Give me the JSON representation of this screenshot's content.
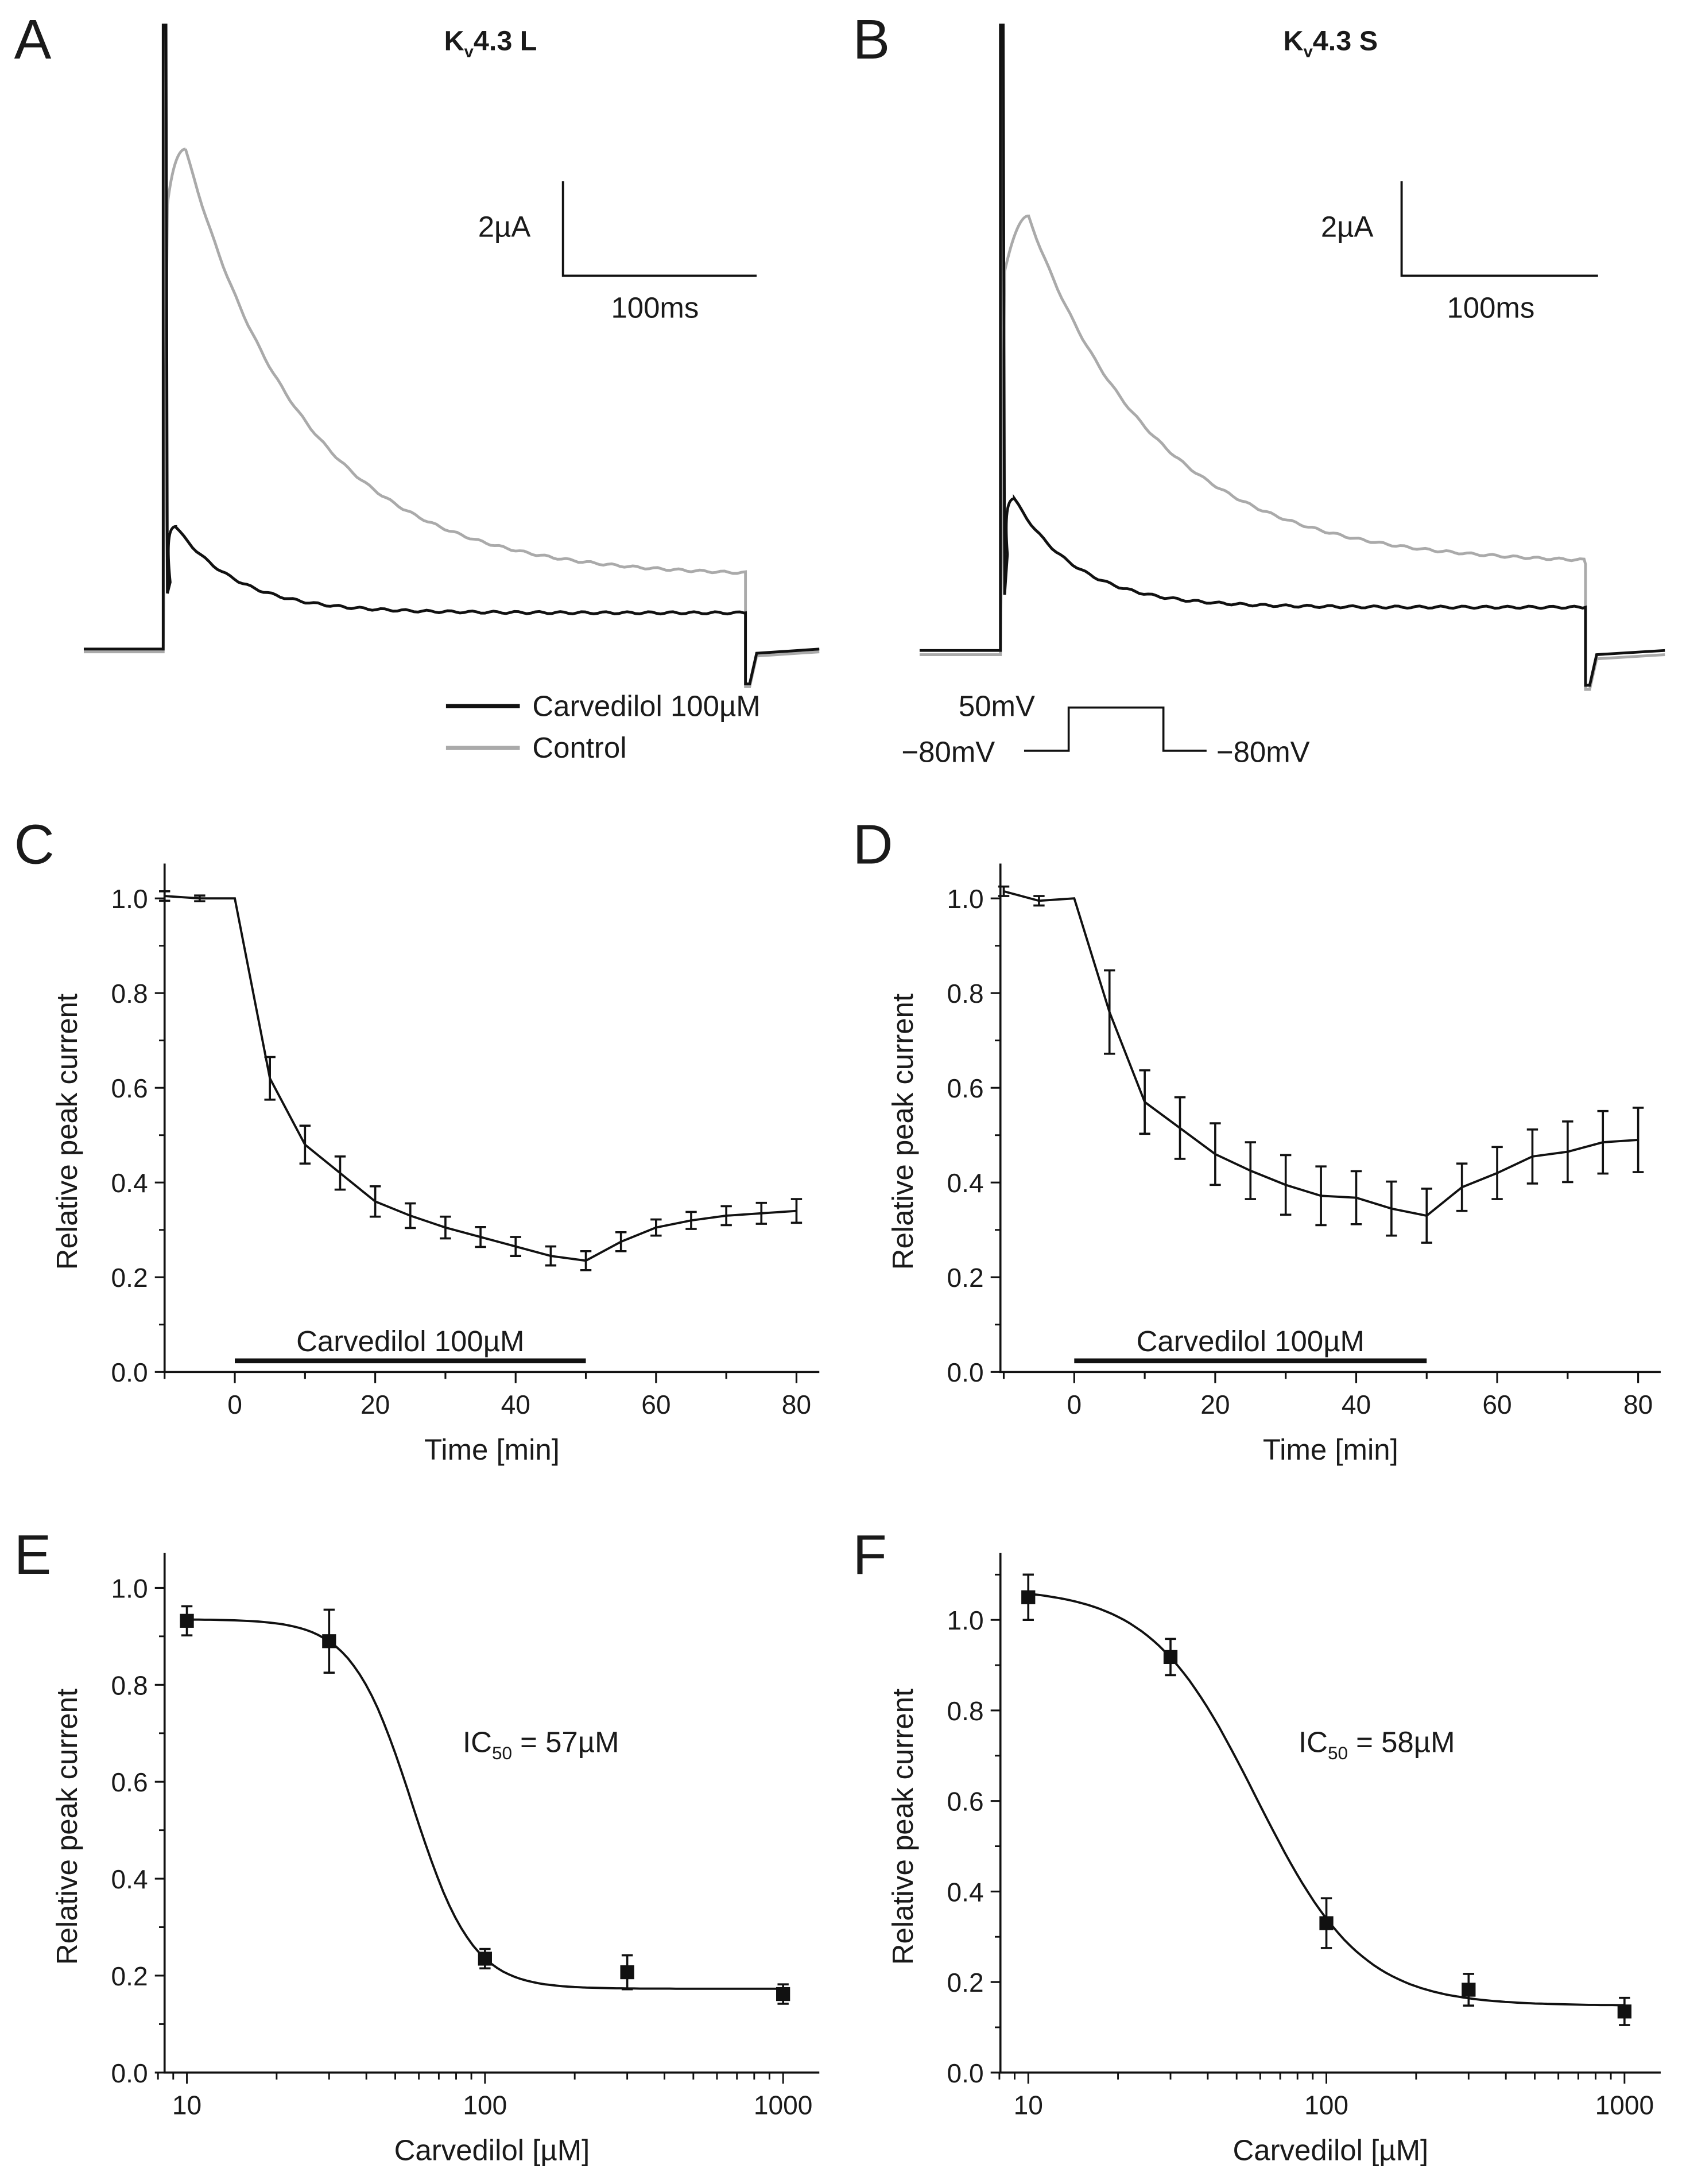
{
  "panels": {
    "A": {
      "letter": "A",
      "title_main": "K",
      "title_sub": "v",
      "title_rest": "4.3 L",
      "scale_current": "2µA",
      "scale_time": "100ms"
    },
    "B": {
      "letter": "B",
      "title_main": "K",
      "title_sub": "v",
      "title_rest": "4.3 S",
      "scale_current": "2µA",
      "scale_time": "100ms"
    },
    "C": {
      "letter": "C"
    },
    "D": {
      "letter": "D"
    },
    "E": {
      "letter": "E"
    },
    "F": {
      "letter": "F"
    }
  },
  "legend": {
    "carvedilol": "Carvedilol 100µM",
    "control": "Control",
    "carvedilol_color": "#111111",
    "control_color": "#aaaaaa"
  },
  "protocol": {
    "step": "50mV",
    "hold_left": "−80mV",
    "hold_right": "−80mV"
  },
  "chart_data": [
    {
      "id": "C",
      "type": "line",
      "xlabel": "Time [min]",
      "ylabel": "Relative peak current",
      "xlim": [
        -10,
        82
      ],
      "ylim": [
        0,
        1.07
      ],
      "xticks": [
        0,
        20,
        40,
        60,
        80
      ],
      "yticks": [
        "0.0",
        "0.2",
        "0.4",
        "0.6",
        "0.8",
        "1.0"
      ],
      "bar_label": "Carvedilol 100µM",
      "bar_range": [
        0,
        50
      ],
      "x": [
        -10,
        -5,
        0,
        5,
        10,
        15,
        20,
        25,
        30,
        35,
        40,
        45,
        50,
        55,
        60,
        65,
        70,
        75,
        80
      ],
      "y": [
        1.005,
        1.0,
        1.0,
        0.62,
        0.48,
        0.42,
        0.36,
        0.33,
        0.305,
        0.285,
        0.265,
        0.245,
        0.235,
        0.275,
        0.305,
        0.32,
        0.33,
        0.335,
        0.34
      ],
      "err": [
        0.01,
        0.006,
        0,
        0.045,
        0.04,
        0.035,
        0.032,
        0.026,
        0.023,
        0.021,
        0.02,
        0.02,
        0.02,
        0.02,
        0.017,
        0.018,
        0.02,
        0.022,
        0.025
      ]
    },
    {
      "id": "D",
      "type": "line",
      "xlabel": "Time [min]",
      "ylabel": "Relative peak current",
      "xlim": [
        -10,
        82
      ],
      "ylim": [
        0,
        1.07
      ],
      "xticks": [
        0,
        20,
        40,
        60,
        80
      ],
      "yticks": [
        "0.0",
        "0.2",
        "0.4",
        "0.6",
        "0.8",
        "1.0"
      ],
      "bar_label": "Carvedilol 100µM",
      "bar_range": [
        0,
        50
      ],
      "x": [
        -10,
        -5,
        0,
        5,
        10,
        15,
        20,
        25,
        30,
        35,
        40,
        45,
        50,
        55,
        60,
        65,
        70,
        75,
        80
      ],
      "y": [
        1.015,
        0.995,
        1.0,
        0.76,
        0.57,
        0.515,
        0.46,
        0.425,
        0.395,
        0.372,
        0.368,
        0.345,
        0.33,
        0.39,
        0.42,
        0.455,
        0.465,
        0.485,
        0.49
      ],
      "err": [
        0.01,
        0.01,
        0,
        0.088,
        0.067,
        0.065,
        0.065,
        0.06,
        0.063,
        0.062,
        0.056,
        0.057,
        0.057,
        0.05,
        0.055,
        0.057,
        0.064,
        0.066,
        0.068
      ]
    },
    {
      "id": "E",
      "type": "scatter",
      "xscale": "log",
      "xlabel": "Carvedilol [µM]",
      "ylabel": "Relative peak current",
      "xlim": [
        8,
        1300
      ],
      "ylim": [
        0,
        1.07
      ],
      "xticks": [
        10,
        100,
        1000
      ],
      "yticks": [
        "0.0",
        "0.2",
        "0.4",
        "0.6",
        "0.8",
        "1.0"
      ],
      "annotation": {
        "main": "IC",
        "sub": "50",
        "rest": " = 57µM"
      },
      "x": [
        10,
        30,
        100,
        300,
        1000
      ],
      "y": [
        0.932,
        0.89,
        0.235,
        0.207,
        0.162
      ],
      "err": [
        0.03,
        0.065,
        0.02,
        0.035,
        0.02
      ],
      "fit": {
        "type": "hill",
        "top": 0.935,
        "bottom": 0.173,
        "ic50": 57,
        "n": 4.3
      }
    },
    {
      "id": "F",
      "type": "scatter",
      "xscale": "log",
      "xlabel": "Carvedilol [µM]",
      "ylabel": "Relative peak current",
      "xlim": [
        8,
        1300
      ],
      "ylim": [
        0,
        1.14
      ],
      "xticks": [
        10,
        100,
        1000
      ],
      "yticks": [
        "0.0",
        "0.2",
        "0.4",
        "0.6",
        "0.8",
        "1.0"
      ],
      "annotation": {
        "main": "IC",
        "sub": "50",
        "rest": " = 58µM"
      },
      "x": [
        10,
        30,
        100,
        300,
        1000
      ],
      "y": [
        1.05,
        0.918,
        0.33,
        0.183,
        0.135
      ],
      "err": [
        0.05,
        0.04,
        0.055,
        0.035,
        0.03
      ],
      "fit": {
        "type": "hill",
        "top": 1.07,
        "bottom": 0.148,
        "ic50": 58,
        "n": 2.45
      }
    }
  ]
}
